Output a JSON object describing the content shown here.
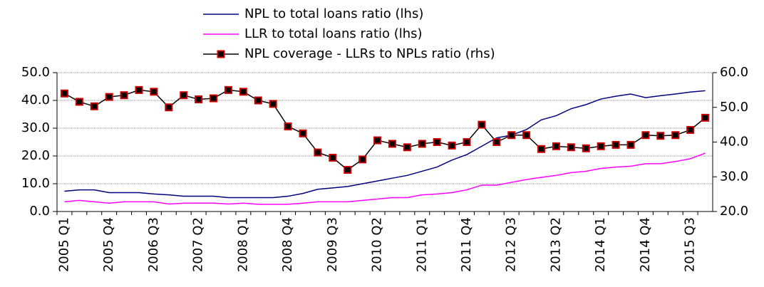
{
  "chart_data": {
    "type": "line",
    "categories": [
      "2005 Q1",
      null,
      null,
      "2005 Q4",
      null,
      null,
      "2006 Q3",
      null,
      null,
      "2007 Q2",
      null,
      null,
      "2008 Q1",
      null,
      null,
      "2008 Q4",
      null,
      null,
      "2009 Q3",
      null,
      null,
      "2010 Q2",
      null,
      null,
      "2011 Q1",
      null,
      null,
      "2011 Q4",
      null,
      null,
      "2012 Q3",
      null,
      null,
      "2013 Q2",
      null,
      null,
      "2014 Q1",
      null,
      null,
      "2014 Q4",
      null,
      null,
      "2015 Q3",
      null
    ],
    "series": [
      {
        "name": "NPL to total loans ratio (lhs)",
        "color": "#000080",
        "values": [
          7.3,
          7.8,
          7.8,
          6.8,
          6.8,
          6.8,
          6.3,
          6,
          5.5,
          5.5,
          5.5,
          5,
          5,
          5,
          5,
          5.5,
          6.5,
          8,
          8.5,
          9,
          10,
          11,
          12,
          13,
          14.5,
          16,
          18.5,
          20.5,
          23.5,
          26.5,
          27.5,
          29.5,
          33,
          34.5,
          37,
          38.5,
          40.5,
          41.5,
          42.3,
          41,
          41.7,
          42.3,
          43,
          43.5
        ]
      },
      {
        "name": "LLR to total loans ratio (lhs)",
        "color": "#ff00ff",
        "values": [
          3.5,
          4,
          3.5,
          3,
          3.5,
          3.5,
          3.5,
          2.7,
          3,
          3,
          3,
          2.7,
          3,
          2.6,
          2.6,
          2.6,
          3,
          3.5,
          3.5,
          3.5,
          4,
          4.5,
          5,
          5,
          6,
          6.3,
          6.8,
          7.8,
          9.5,
          9.5,
          10.5,
          11.5,
          12.3,
          13,
          14,
          14.5,
          15.5,
          16,
          16.3,
          17.2,
          17.2,
          18,
          19,
          21
        ]
      },
      {
        "name": "NPL coverage - LLRs to NPLs ratio (rhs)",
        "color": "#000000",
        "marker_color": "#cc0000",
        "axis": "y2",
        "values": [
          54,
          51.6,
          50.3,
          53,
          53.5,
          55,
          54.5,
          50,
          53.5,
          52.3,
          52.6,
          55,
          54.5,
          52,
          51,
          44.5,
          42.5,
          37,
          35.5,
          32,
          35,
          40.5,
          39.5,
          38.5,
          39.5,
          40,
          39,
          40,
          45,
          40,
          42,
          42,
          38,
          38.8,
          38.5,
          38.2,
          38.8,
          39.2,
          39.2,
          42,
          41.8,
          42,
          43.5,
          47
        ]
      }
    ],
    "ylim": [
      0,
      50
    ],
    "yticks": [
      {
        "value": 0,
        "label": "0.0"
      },
      {
        "value": 10,
        "label": "10.0"
      },
      {
        "value": 20,
        "label": "20.0"
      },
      {
        "value": 30,
        "label": "30.0"
      },
      {
        "value": 40,
        "label": "40.0"
      },
      {
        "value": 50,
        "label": "50.0"
      }
    ],
    "y2lim": [
      20,
      60
    ],
    "y2ticks": [
      {
        "value": 20,
        "label": "20.0"
      },
      {
        "value": 30,
        "label": "30.0"
      },
      {
        "value": 40,
        "label": "40.0"
      },
      {
        "value": 50,
        "label": "50.0"
      },
      {
        "value": 60,
        "label": "60.0"
      }
    ],
    "grid": true,
    "legend": "top"
  }
}
